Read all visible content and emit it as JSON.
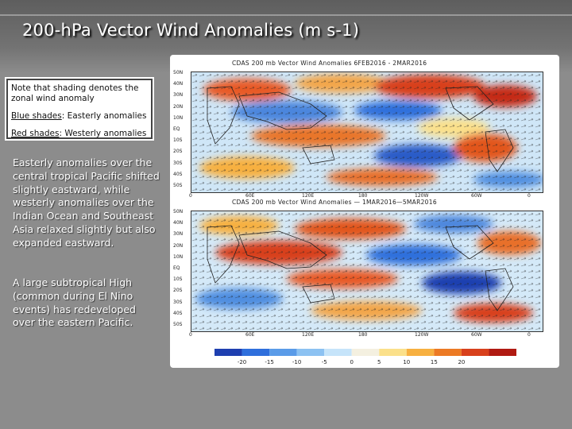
{
  "slide": {
    "title": "200-hPa Vector Wind Anomalies  (m s-1)"
  },
  "note_box": {
    "intro": "Note that shading denotes the zonal wind anomaly",
    "blue_label": "Blue shades",
    "blue_text": ": Easterly anomalies",
    "red_label": "Red shades",
    "red_text": ": Westerly anomalies"
  },
  "description": {
    "para1": "Easterly anomalies over the central tropical Pacific shifted slightly eastward, while westerly anomalies over the Indian Ocean and Southeast Asia relaxed slightly but also expanded eastward.",
    "para2": "A large subtropical High (common during El Nino events) has redeveloped over the eastern Pacific."
  },
  "figure": {
    "map1_header": "CDAS  200 mb  Vector Wind Anomalies        6FEB2016  -  2MAR2016",
    "map2_header": "CDAS  200 mb  Vector Wind Anomalies  —  1MAR2016—5MAR2016",
    "lat_labels": [
      "50N",
      "40N",
      "30N",
      "20N",
      "10N",
      "EQ",
      "10S",
      "20S",
      "30S",
      "40S",
      "50S"
    ],
    "lon_labels": [
      "0",
      "60E",
      "120E",
      "180",
      "120W",
      "60W",
      "0"
    ],
    "colorbar": {
      "ticks": [
        "-20",
        "-15",
        "-10",
        "-5",
        "0",
        "5",
        "10",
        "15",
        "20"
      ],
      "colors": [
        "#1e3fb0",
        "#2f6fdc",
        "#5a9be8",
        "#8cc2f2",
        "#c6e4fa",
        "#f4f0e0",
        "#fbe08a",
        "#f7b040",
        "#ec7a24",
        "#d8401c",
        "#b01a12"
      ]
    }
  }
}
